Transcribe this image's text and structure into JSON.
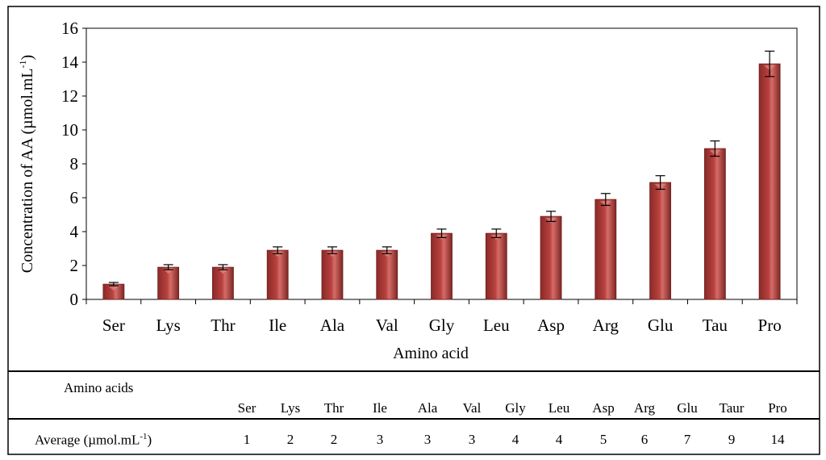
{
  "chart_data": {
    "type": "bar",
    "categories": [
      "Ser",
      "Lys",
      "Thr",
      "Ile",
      "Ala",
      "Val",
      "Gly",
      "Leu",
      "Asp",
      "Arg",
      "Glu",
      "Tau",
      "Pro"
    ],
    "values": [
      0.9,
      1.9,
      1.9,
      2.9,
      2.9,
      2.9,
      3.9,
      3.9,
      4.9,
      5.9,
      6.9,
      8.9,
      13.9
    ],
    "errors": [
      0.1,
      0.15,
      0.15,
      0.2,
      0.2,
      0.2,
      0.25,
      0.25,
      0.3,
      0.35,
      0.4,
      0.45,
      0.75
    ],
    "xlabel": "Amino acid",
    "ylabel_main": "Concentration of AA (µmol.mL",
    "ylabel_sup": "-1",
    "ylabel_close": ")",
    "ylim": [
      0,
      16
    ],
    "yticks": [
      0,
      2,
      4,
      6,
      8,
      10,
      12,
      14,
      16
    ],
    "bar_color": "#b8413e",
    "grid": false
  },
  "table": {
    "header_label": "Amino acids",
    "row_label_main": "Average (µmol.mL",
    "row_label_sup": "-1",
    "row_label_close": ")",
    "columns": [
      "Ser",
      "Lys",
      "Thr",
      "Ile",
      "Ala",
      "Val",
      "Gly",
      "Leu",
      "Asp",
      "Arg",
      "Glu",
      "Taur",
      "Pro"
    ],
    "averages": [
      "1",
      "2",
      "2",
      "3",
      "3",
      "3",
      "4",
      "4",
      "5",
      "6",
      "7",
      "9",
      "14"
    ]
  }
}
